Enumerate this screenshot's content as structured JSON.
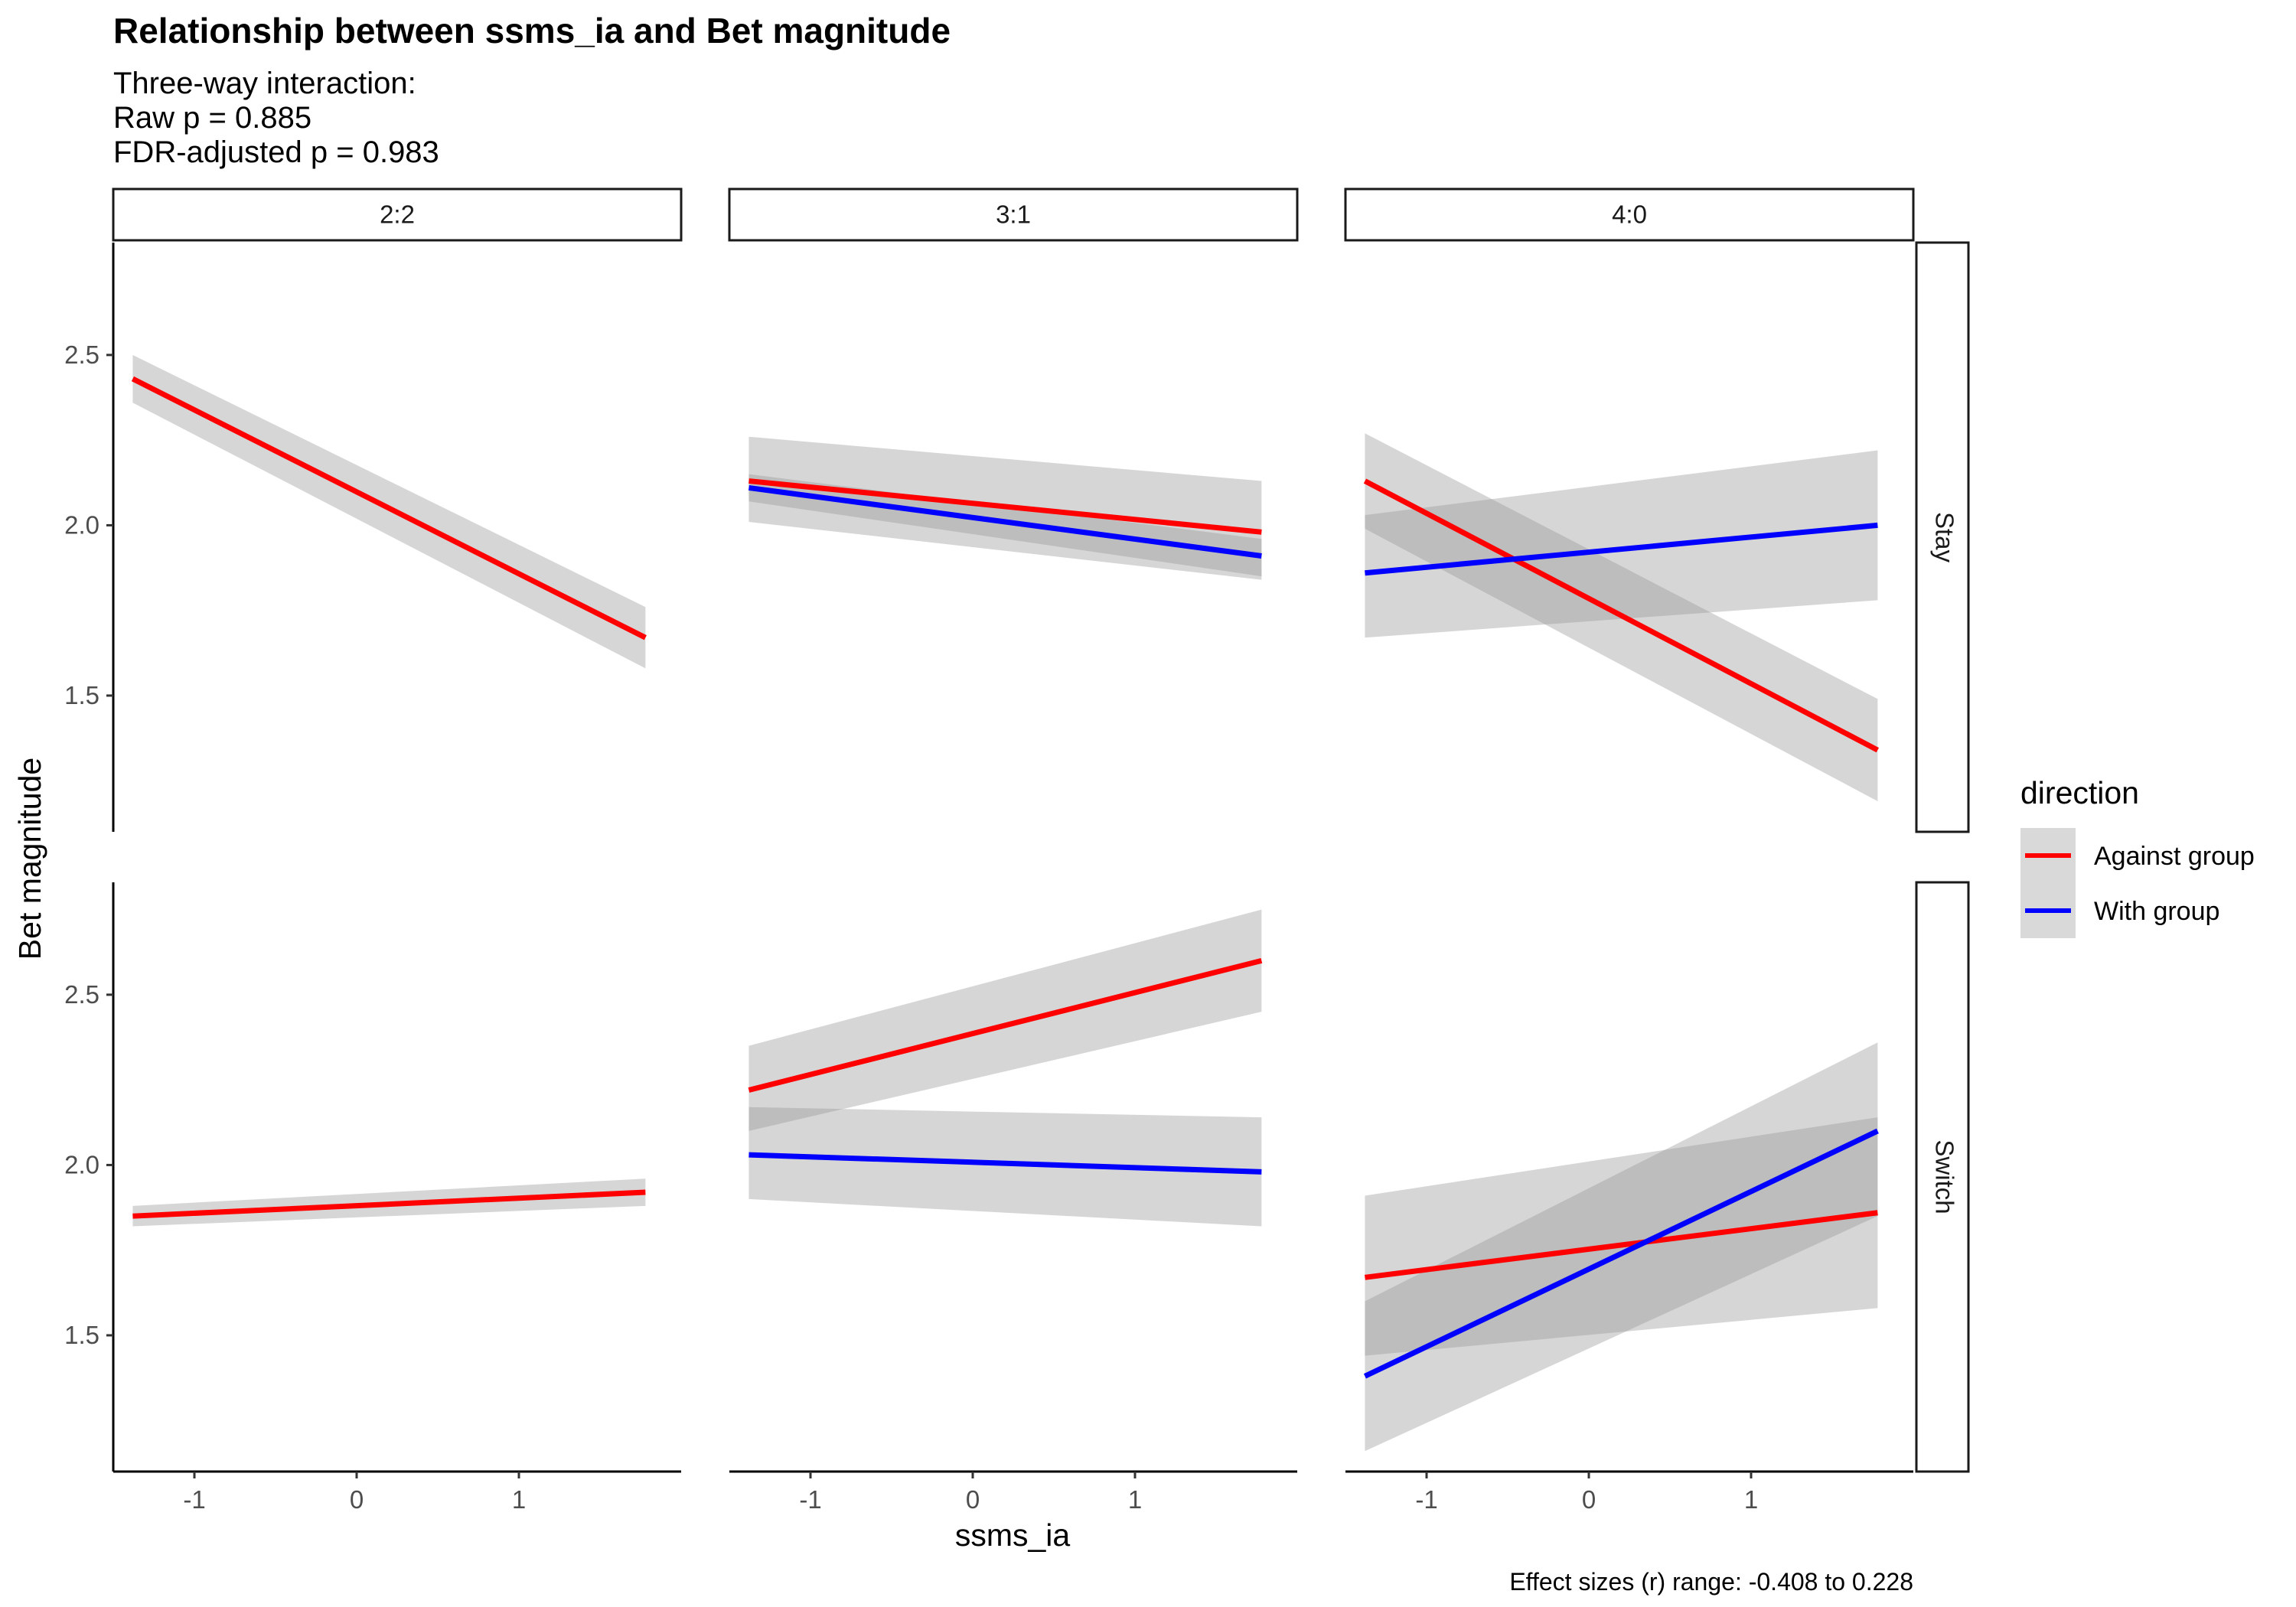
{
  "title": "Relationship between ssms_ia and Bet magnitude",
  "subtitle_lines": [
    "Three-way interaction:",
    "Raw p = 0.885",
    "FDR-adjusted p = 0.983"
  ],
  "caption": "Effect sizes (r) range: -0.408 to 0.228",
  "colors": {
    "Against group": "#ff0000",
    "With group": "#0000ff",
    "ribbon": "#999999"
  },
  "chart_data": {
    "type": "line",
    "xlabel": "ssms_ia",
    "ylabel": "Bet magnitude",
    "xlim": [
      -1.5,
      2.0
    ],
    "ylim": [
      1.1,
      2.83
    ],
    "x_ticks": [
      -1,
      0,
      1
    ],
    "y_ticks": [
      1.5,
      2.0,
      2.5
    ],
    "x_range": [
      -1.38,
      1.78
    ],
    "grid": false,
    "legend": {
      "title": "direction",
      "position": "right",
      "entries": [
        "Against group",
        "With group"
      ]
    },
    "columns": [
      "2:2",
      "3:1",
      "4:0"
    ],
    "rows": [
      "Stay",
      "Switch"
    ],
    "panels": [
      {
        "col": "2:2",
        "row": "Stay",
        "series": [
          {
            "name": "Against group",
            "x": [
              -1.38,
              1.78
            ],
            "y": [
              2.43,
              1.67
            ],
            "lower": [
              2.36,
              1.58
            ],
            "upper": [
              2.5,
              1.76
            ]
          }
        ]
      },
      {
        "col": "3:1",
        "row": "Stay",
        "series": [
          {
            "name": "Against group",
            "x": [
              -1.38,
              1.78
            ],
            "y": [
              2.13,
              1.98
            ],
            "lower": [
              2.01,
              1.84
            ],
            "upper": [
              2.26,
              2.13
            ]
          },
          {
            "name": "With group",
            "x": [
              -1.38,
              1.78
            ],
            "y": [
              2.11,
              1.91
            ],
            "lower": [
              2.07,
              1.85
            ],
            "upper": [
              2.15,
              1.96
            ]
          }
        ]
      },
      {
        "col": "4:0",
        "row": "Stay",
        "series": [
          {
            "name": "Against group",
            "x": [
              -1.38,
              1.78
            ],
            "y": [
              2.13,
              1.34
            ],
            "lower": [
              1.99,
              1.19
            ],
            "upper": [
              2.27,
              1.49
            ]
          },
          {
            "name": "With group",
            "x": [
              -1.38,
              1.78
            ],
            "y": [
              1.86,
              2.0
            ],
            "lower": [
              1.67,
              1.78
            ],
            "upper": [
              2.03,
              2.22
            ]
          }
        ]
      },
      {
        "col": "2:2",
        "row": "Switch",
        "series": [
          {
            "name": "Against group",
            "x": [
              -1.38,
              1.78
            ],
            "y": [
              1.85,
              1.92
            ],
            "lower": [
              1.82,
              1.88
            ],
            "upper": [
              1.88,
              1.96
            ]
          }
        ]
      },
      {
        "col": "3:1",
        "row": "Switch",
        "series": [
          {
            "name": "Against group",
            "x": [
              -1.38,
              1.78
            ],
            "y": [
              2.22,
              2.6
            ],
            "lower": [
              2.1,
              2.45
            ],
            "upper": [
              2.35,
              2.75
            ]
          },
          {
            "name": "With group",
            "x": [
              -1.38,
              1.78
            ],
            "y": [
              2.03,
              1.98
            ],
            "lower": [
              1.9,
              1.82
            ],
            "upper": [
              2.17,
              2.14
            ]
          }
        ]
      },
      {
        "col": "4:0",
        "row": "Switch",
        "series": [
          {
            "name": "Against group",
            "x": [
              -1.38,
              1.78
            ],
            "y": [
              1.67,
              1.86
            ],
            "lower": [
              1.44,
              1.58
            ],
            "upper": [
              1.91,
              2.14
            ]
          },
          {
            "name": "With group",
            "x": [
              -1.38,
              1.78
            ],
            "y": [
              1.38,
              2.1
            ],
            "lower": [
              1.16,
              1.85
            ],
            "upper": [
              1.6,
              2.36
            ]
          }
        ]
      }
    ]
  }
}
